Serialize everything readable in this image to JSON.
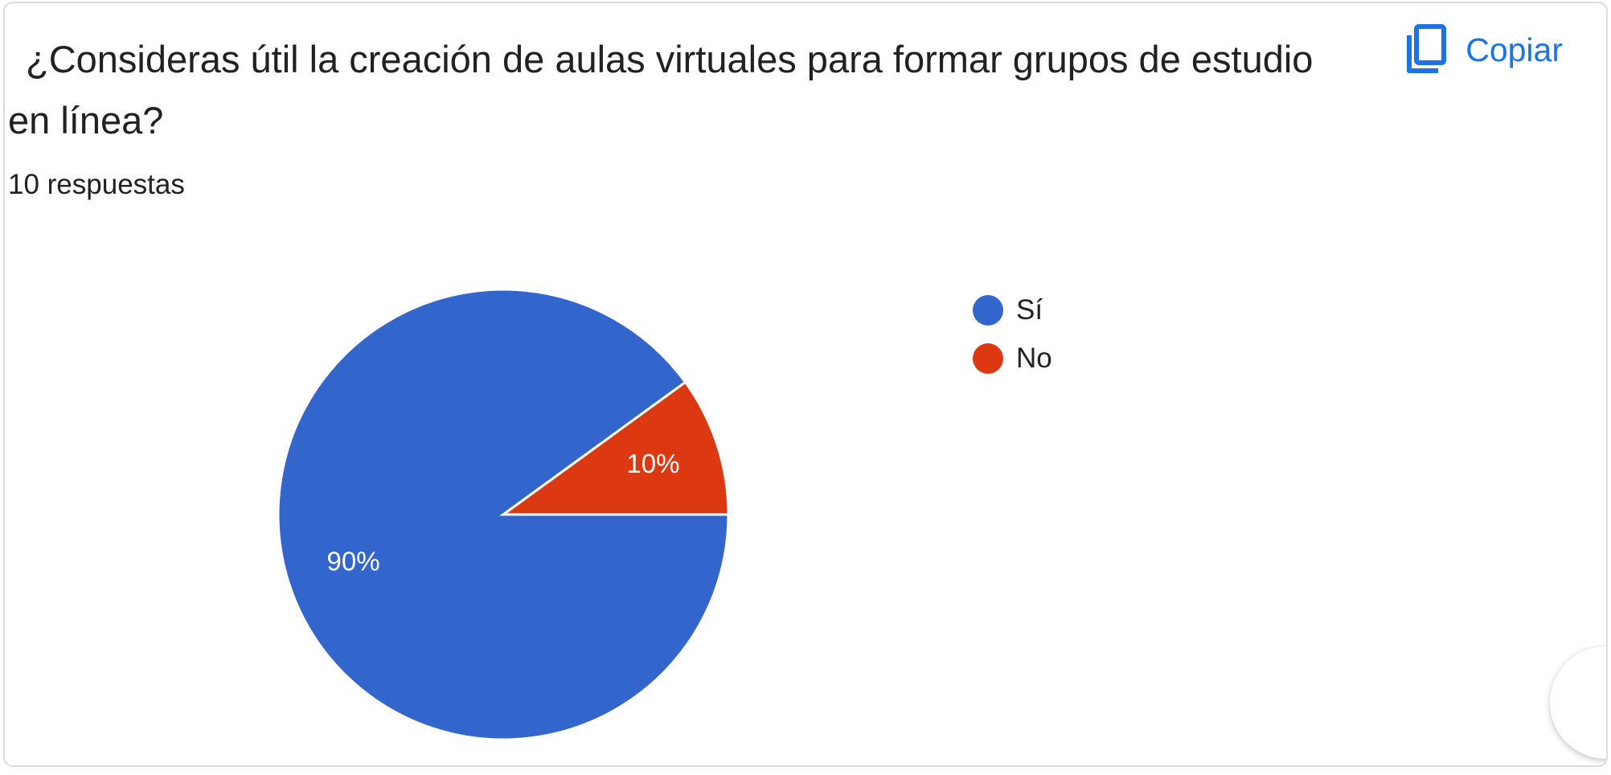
{
  "question": {
    "title": "¿Consideras útil la creación de aulas virtuales para formar grupos de estudio en línea?",
    "response_count": "10 respuestas"
  },
  "actions": {
    "copy_label": "Copiar",
    "copy_icon": "copy-icon"
  },
  "colors": {
    "accent": "#1a73e8",
    "si": "#3366cc",
    "no": "#dc3912"
  },
  "chart_data": {
    "type": "pie",
    "title": "",
    "slices": [
      {
        "label": "Sí",
        "value": 90,
        "display": "90%",
        "color": "#3366cc"
      },
      {
        "label": "No",
        "value": 10,
        "display": "10%",
        "color": "#dc3912"
      }
    ],
    "legend_position": "right"
  }
}
